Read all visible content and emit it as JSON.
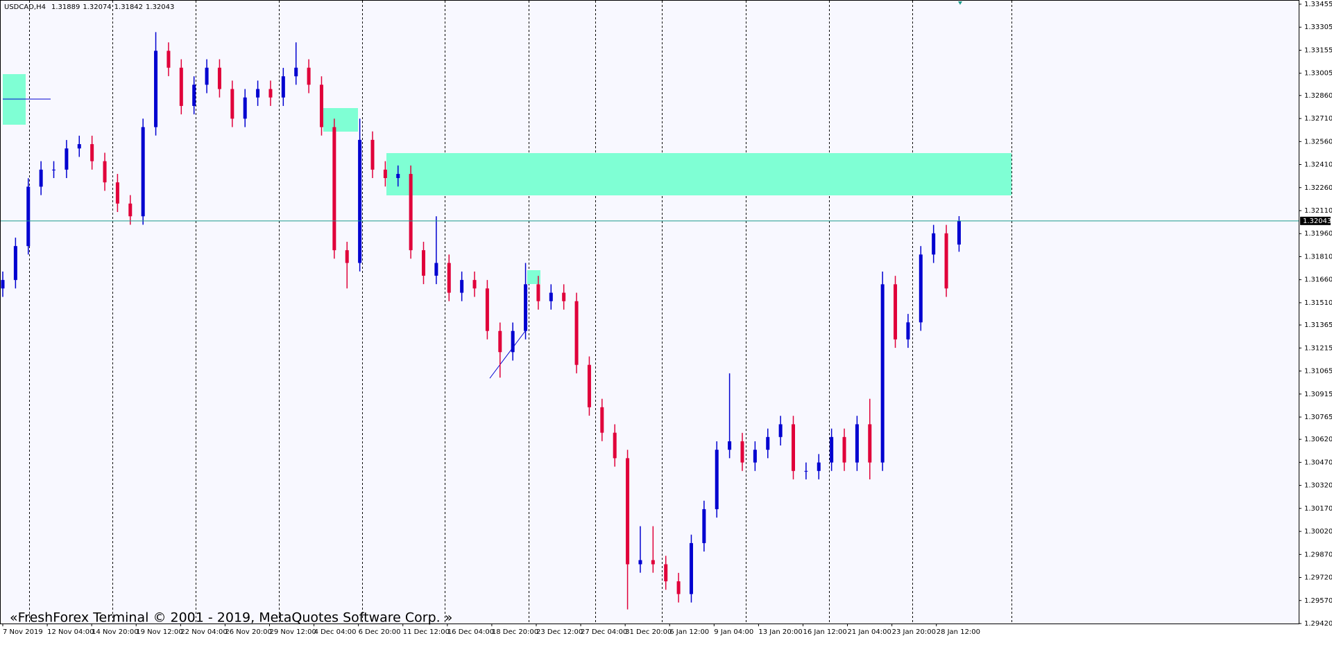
{
  "chart_data": {
    "type": "candlestick",
    "symbol": "USDCAD,H4",
    "watermark": "«FreshForex Terminal © 2001 - 2019, MetaQuotes Software Corp. »",
    "up_color": "#0000d0",
    "down_color": "#e0003a",
    "price_line_color": "#1a9a8a",
    "x_labels": [
      "7 Nov 2019",
      "12 Nov 04:00",
      "14 Nov 20:00",
      "19 Nov 12:00",
      "22 Nov 04:00",
      "26 Nov 20:00",
      "29 Nov 12:00",
      "4 Dec 04:00",
      "6 Dec 20:00",
      "11 Dec 12:00",
      "16 Dec 04:00",
      "18 Dec 20:00",
      "23 Dec 12:00",
      "27 Dec 04:00",
      "31 Dec 20:00",
      "6 Jan 12:00",
      "9 Jan 04:00",
      "13 Jan 20:00",
      "16 Jan 12:00",
      "21 Jan 04:00",
      "23 Jan 20:00",
      "28 Jan 12:00"
    ],
    "ylim": [
      1.2942,
      1.33455
    ],
    "yticks": [
      1.33455,
      1.33305,
      1.33155,
      1.33005,
      {
        "value": 1.3286,
        "label": "1.32860"
      },
      {
        "value": 1.3271,
        "label": "1.32710"
      },
      {
        "value": 1.3256,
        "label": "1.32560"
      },
      {
        "value": 1.3241,
        "label": "1.32410"
      },
      {
        "value": 1.3226,
        "label": "1.32260"
      },
      {
        "value": 1.3211,
        "label": "1.32110"
      },
      {
        "value": 1.3196,
        "label": "1.31960"
      },
      {
        "value": 1.3181,
        "label": "1.31810"
      },
      {
        "value": 1.3166,
        "label": "1.31660"
      },
      {
        "value": 1.3151,
        "label": "1.31510"
      },
      1.31365,
      1.31215,
      1.31065,
      1.30915,
      1.30765,
      {
        "value": 1.3062,
        "label": "1.30620"
      },
      {
        "value": 1.3047,
        "label": "1.30470"
      },
      {
        "value": 1.3032,
        "label": "1.30320"
      },
      {
        "value": 1.3017,
        "label": "1.30170"
      },
      {
        "value": 1.3002,
        "label": "1.30020"
      },
      {
        "value": 1.2987,
        "label": "1.29870"
      },
      {
        "value": 1.2972,
        "label": "1.29720"
      },
      {
        "value": 1.2957,
        "label": "1.29570"
      },
      {
        "value": 1.2942,
        "label": "1.29420"
      }
    ],
    "ohlc": [
      [
        1.31603,
        1.31713,
        1.31548,
        1.31658
      ],
      [
        1.31658,
        1.31934,
        1.31603,
        1.31879
      ],
      [
        1.31879,
        1.32321,
        1.31824,
        1.32266
      ],
      [
        1.32266,
        1.32432,
        1.32211,
        1.32377
      ],
      [
        1.32377,
        1.32432,
        1.32322,
        1.32377
      ],
      [
        1.32377,
        1.3257,
        1.32322,
        1.32515
      ],
      [
        1.32515,
        1.32598,
        1.3246,
        1.32543
      ],
      [
        1.32543,
        1.32598,
        1.32377,
        1.32432
      ],
      [
        1.32432,
        1.32487,
        1.32239,
        1.32294
      ],
      [
        1.32294,
        1.32349,
        1.32101,
        1.32156
      ],
      [
        1.32156,
        1.32211,
        1.32018,
        1.32073
      ],
      [
        1.32073,
        1.32709,
        1.32018,
        1.32654
      ],
      [
        1.32654,
        1.33273,
        1.32599,
        1.33151
      ],
      [
        1.33151,
        1.33206,
        1.32986,
        1.33041
      ],
      [
        1.33041,
        1.33096,
        1.32737,
        1.32792
      ],
      [
        1.32792,
        1.32985,
        1.32737,
        1.3293
      ],
      [
        1.3293,
        1.33096,
        1.32875,
        1.33041
      ],
      [
        1.33041,
        1.33096,
        1.32847,
        1.32902
      ],
      [
        1.32902,
        1.32957,
        1.32654,
        1.32709
      ],
      [
        1.32709,
        1.32902,
        1.32654,
        1.32847
      ],
      [
        1.32847,
        1.32957,
        1.32792,
        1.32902
      ],
      [
        1.32902,
        1.32957,
        1.32792,
        1.32847
      ],
      [
        1.32847,
        1.3304,
        1.32792,
        1.32985
      ],
      [
        1.32985,
        1.33206,
        1.3293,
        1.33041
      ],
      [
        1.33041,
        1.33096,
        1.32875,
        1.3293
      ],
      [
        1.3293,
        1.32985,
        1.32599,
        1.32654
      ],
      [
        1.32654,
        1.32709,
        1.31797,
        1.31852
      ],
      [
        1.31852,
        1.31907,
        1.31603,
        1.31769
      ],
      [
        1.31769,
        1.32709,
        1.31714,
        1.32571
      ],
      [
        1.32571,
        1.32626,
        1.32322,
        1.32377
      ],
      [
        1.32377,
        1.32432,
        1.32267,
        1.32322
      ],
      [
        1.32322,
        1.32404,
        1.32267,
        1.32349
      ],
      [
        1.32349,
        1.32404,
        1.31797,
        1.31852
      ],
      [
        1.31852,
        1.31907,
        1.31631,
        1.31686
      ],
      [
        1.31686,
        1.32073,
        1.31631,
        1.31769
      ],
      [
        1.31769,
        1.31824,
        1.3152,
        1.31575
      ],
      [
        1.31575,
        1.31713,
        1.3152,
        1.31658
      ],
      [
        1.31658,
        1.31713,
        1.31548,
        1.31603
      ],
      [
        1.31603,
        1.31658,
        1.31271,
        1.31326
      ],
      [
        1.31326,
        1.31381,
        1.31022,
        1.31188
      ],
      [
        1.31188,
        1.31381,
        1.31133,
        1.31326
      ],
      [
        1.31326,
        1.31769,
        1.31271,
        1.3163
      ],
      [
        1.3163,
        1.31685,
        1.31465,
        1.3152
      ],
      [
        1.3152,
        1.3163,
        1.31465,
        1.31575
      ],
      [
        1.31575,
        1.3163,
        1.31465,
        1.3152
      ],
      [
        1.3152,
        1.31575,
        1.3105,
        1.31105
      ],
      [
        1.31105,
        1.3116,
        1.30774,
        1.30829
      ],
      [
        1.30829,
        1.30884,
        1.30608,
        1.30663
      ],
      [
        1.30663,
        1.30718,
        1.30442,
        1.30497
      ],
      [
        1.30497,
        1.30552,
        1.29512,
        1.29806
      ],
      [
        1.29806,
        1.30054,
        1.29751,
        1.29833
      ],
      [
        1.29833,
        1.30054,
        1.29751,
        1.29806
      ],
      [
        1.29806,
        1.29861,
        1.2964,
        1.29695
      ],
      [
        1.29695,
        1.2975,
        1.29557,
        1.29612
      ],
      [
        1.29612,
        1.29999,
        1.29557,
        1.29944
      ],
      [
        1.29944,
        1.3022,
        1.29889,
        1.30165
      ],
      [
        1.30165,
        1.30607,
        1.3011,
        1.30552
      ],
      [
        1.30552,
        1.3105,
        1.30497,
        1.30607
      ],
      [
        1.30607,
        1.30662,
        1.30414,
        1.30469
      ],
      [
        1.30469,
        1.30607,
        1.30414,
        1.30552
      ],
      [
        1.30552,
        1.3069,
        1.30497,
        1.30635
      ],
      [
        1.30635,
        1.30773,
        1.3058,
        1.30718
      ],
      [
        1.30718,
        1.30773,
        1.30359,
        1.30414
      ],
      [
        1.30414,
        1.30469,
        1.30359,
        1.30414
      ],
      [
        1.30414,
        1.30524,
        1.30359,
        1.30469
      ],
      [
        1.30469,
        1.3069,
        1.30414,
        1.30635
      ],
      [
        1.30635,
        1.3069,
        1.30414,
        1.30469
      ],
      [
        1.30469,
        1.30773,
        1.30414,
        1.30718
      ],
      [
        1.30718,
        1.30884,
        1.30359,
        1.30469
      ],
      [
        1.30469,
        1.31713,
        1.30414,
        1.3163
      ],
      [
        1.3163,
        1.31685,
        1.31216,
        1.31271
      ],
      [
        1.31271,
        1.31437,
        1.31216,
        1.31382
      ],
      [
        1.31382,
        1.31879,
        1.31327,
        1.31824
      ],
      [
        1.31824,
        1.32017,
        1.31769,
        1.31962
      ],
      [
        1.31962,
        1.32017,
        1.31548,
        1.31603
      ],
      [
        1.31889,
        1.32074,
        1.31842,
        1.32043
      ]
    ]
  }
}
